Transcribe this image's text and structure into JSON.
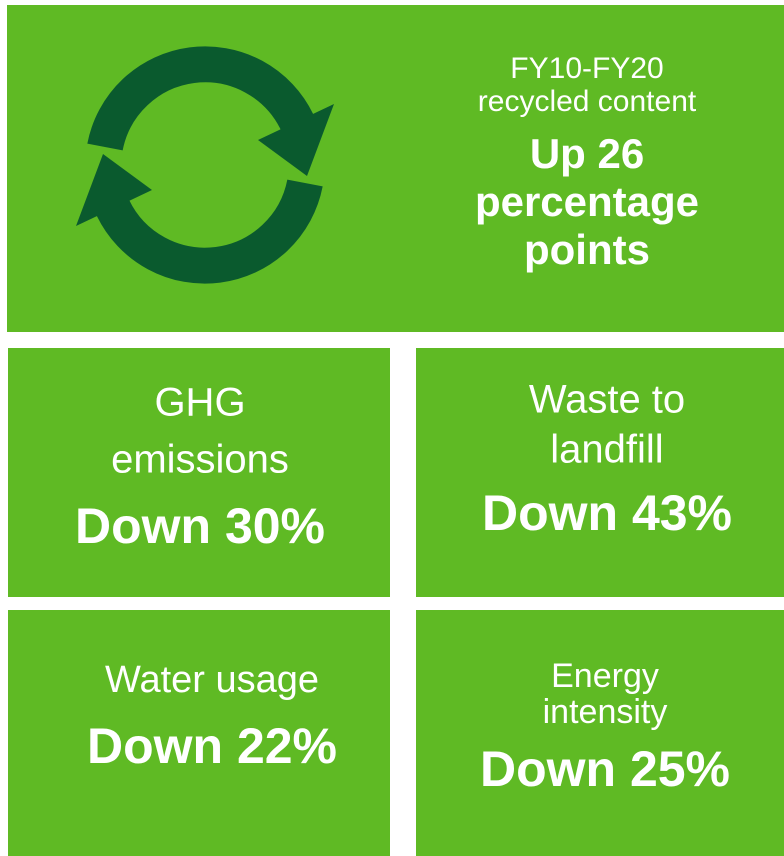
{
  "tiles": [
    {
      "label_lines": [
        "FY10-FY20",
        "recycled content"
      ],
      "value_lines": [
        "Up 26",
        "percentage",
        "points"
      ]
    },
    {
      "label_lines": [
        "GHG",
        "emissions"
      ],
      "value_lines": [
        "Down 30%"
      ]
    },
    {
      "label_lines": [
        "Waste to",
        "landfill"
      ],
      "value_lines": [
        "Down 43%"
      ]
    },
    {
      "label_lines": [
        "Water usage"
      ],
      "value_lines": [
        "Down 22%"
      ]
    },
    {
      "label_lines": [
        "Energy",
        "intensity"
      ],
      "value_lines": [
        "Down 25%"
      ]
    }
  ]
}
